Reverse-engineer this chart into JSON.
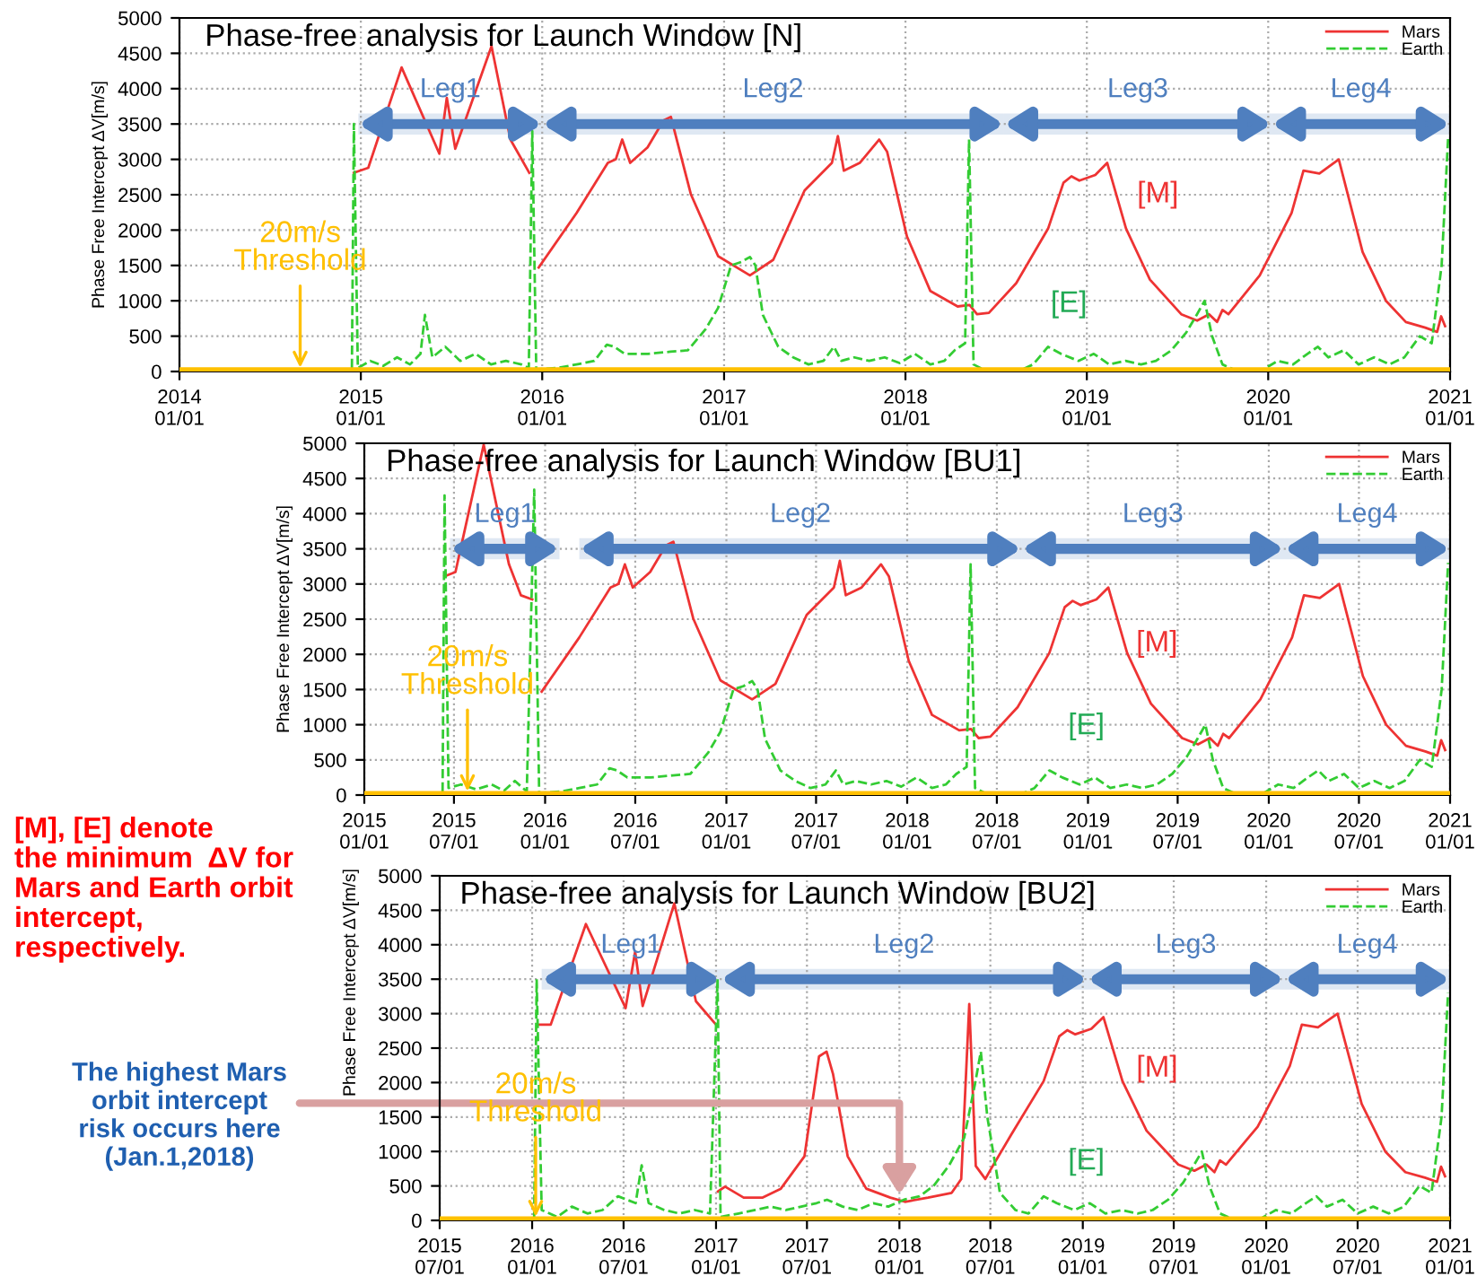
{
  "chart_data": [
    {
      "type": "line",
      "title": "Phase-free analysis for Launch Window [N]",
      "ylabel": "Phase Free Intercept ΔV[m/s]",
      "xlim": [
        "2014-01-01",
        "2021-01-01"
      ],
      "xticks": [
        {
          "value": "2014-01-01",
          "label": "2014\n01/01"
        },
        {
          "value": "2015-01-01",
          "label": "2015\n01/01"
        },
        {
          "value": "2016-01-01",
          "label": "2016\n01/01"
        },
        {
          "value": "2017-01-01",
          "label": "2017\n01/01"
        },
        {
          "value": "2018-01-01",
          "label": "2018\n01/01"
        },
        {
          "value": "2019-01-01",
          "label": "2019\n01/01"
        },
        {
          "value": "2020-01-01",
          "label": "2020\n01/01"
        },
        {
          "value": "2021-01-01",
          "label": "2021\n01/01"
        }
      ],
      "ylim": [
        0,
        5000
      ],
      "yticks": [
        0,
        500,
        1000,
        1500,
        2000,
        2500,
        3000,
        3500,
        4000,
        4500,
        5000
      ],
      "grid": true,
      "legend": "top right",
      "series": [
        {
          "name": "Mars",
          "color": "#ee3333",
          "line_style": "solid",
          "x": [
            "2014-12-18",
            "2015-01-16",
            "2015-03-24",
            "2015-06-08",
            "2015-06-23",
            "2015-07-10",
            "2015-09-21",
            "2015-10-29",
            "2015-12-06",
            "2015-12-15",
            "2015-12-25",
            "2016-03-10",
            "2016-05-12",
            "2016-05-28",
            "2016-06-10",
            "2016-06-26",
            "2016-07-31",
            "2016-09-01",
            "2016-09-16",
            "2016-10-26",
            "2016-12-20",
            "2017-02-22",
            "2017-04-10",
            "2017-06-12",
            "2017-08-06",
            "2017-08-18",
            "2017-08-30",
            "2017-10-01",
            "2017-11-09",
            "2017-11-25",
            "2018-01-04",
            "2018-02-20",
            "2018-04-16",
            "2018-05-10",
            "2018-05-25",
            "2018-06-18",
            "2018-08-12",
            "2018-10-15",
            "2018-11-15",
            "2018-12-01",
            "2018-12-17",
            "2019-01-18",
            "2019-02-11",
            "2019-03-21",
            "2019-05-08",
            "2019-07-10",
            "2019-08-11",
            "2019-09-04",
            "2019-09-20",
            "2019-10-01",
            "2019-10-13",
            "2019-12-15",
            "2020-02-17",
            "2020-03-12",
            "2020-04-13",
            "2020-05-22",
            "2020-07-09",
            "2020-08-25",
            "2020-10-04",
            "2020-11-12",
            "2020-12-06",
            "2020-12-14",
            "2020-12-22"
          ],
          "values": [
            2810,
            2880,
            4300,
            3080,
            3870,
            3150,
            4600,
            3280,
            2810,
            null,
            1470,
            2240,
            2950,
            3000,
            3280,
            2950,
            3170,
            3550,
            3600,
            2510,
            1630,
            1360,
            1580,
            2560,
            2950,
            3330,
            2840,
            2950,
            3280,
            3110,
            1910,
            1140,
            920,
            940,
            810,
            830,
            1250,
            2020,
            2670,
            2760,
            2700,
            2780,
            2950,
            2020,
            1300,
            810,
            720,
            810,
            700,
            870,
            810,
            1360,
            2240,
            2840,
            2800,
            3000,
            1690,
            1000,
            700,
            620,
            560,
            780,
            640
          ]
        },
        {
          "name": "Earth",
          "color": "#33cc33",
          "line_style": "dashed",
          "x": [
            "2014-12-14",
            "2014-12-18",
            "2014-12-26",
            "2015-01-20",
            "2015-02-15",
            "2015-03-15",
            "2015-04-10",
            "2015-05-01",
            "2015-05-10",
            "2015-05-25",
            "2015-06-20",
            "2015-07-20",
            "2015-08-20",
            "2015-09-20",
            "2015-10-20",
            "2015-11-20",
            "2015-12-05",
            "2015-12-12",
            "2015-12-20",
            "2016-02-01",
            "2016-03-10",
            "2016-04-15",
            "2016-05-10",
            "2016-05-25",
            "2016-06-15",
            "2016-08-01",
            "2016-09-15",
            "2016-10-20",
            "2016-11-25",
            "2016-12-20",
            "2017-01-15",
            "2017-02-05",
            "2017-02-22",
            "2017-03-05",
            "2017-03-20",
            "2017-04-20",
            "2017-05-20",
            "2017-06-20",
            "2017-07-20",
            "2017-08-10",
            "2017-08-25",
            "2017-09-20",
            "2017-10-20",
            "2017-11-20",
            "2017-12-20",
            "2018-01-20",
            "2018-02-20",
            "2018-03-20",
            "2018-04-10",
            "2018-05-01",
            "2018-05-09",
            "2018-05-18",
            "2018-06-15",
            "2018-08-15",
            "2018-09-15",
            "2018-10-15",
            "2018-11-10",
            "2018-12-15",
            "2019-01-15",
            "2019-02-15",
            "2019-03-20",
            "2019-04-20",
            "2019-05-20",
            "2019-06-20",
            "2019-07-20",
            "2019-08-10",
            "2019-08-26",
            "2019-09-10",
            "2019-10-01",
            "2019-11-01",
            "2019-12-15",
            "2020-01-20",
            "2020-02-20",
            "2020-03-20",
            "2020-04-10",
            "2020-05-01",
            "2020-06-01",
            "2020-07-01",
            "2020-08-01",
            "2020-09-01",
            "2020-10-01",
            "2020-11-01",
            "2020-11-25",
            "2020-12-15",
            "2020-12-28"
          ],
          "values": [
            50,
            3500,
            50,
            150,
            80,
            200,
            100,
            250,
            800,
            200,
            350,
            150,
            250,
            100,
            150,
            100,
            50,
            3400,
            30,
            50,
            100,
            150,
            380,
            350,
            250,
            250,
            280,
            300,
            600,
            900,
            1500,
            1550,
            1620,
            1500,
            800,
            350,
            200,
            100,
            150,
            350,
            150,
            200,
            150,
            200,
            120,
            250,
            100,
            150,
            300,
            400,
            3280,
            100,
            0,
            0,
            100,
            350,
            250,
            150,
            250,
            100,
            150,
            100,
            150,
            300,
            550,
            800,
            1000,
            500,
            100,
            0,
            0,
            150,
            100,
            250,
            350,
            200,
            300,
            100,
            200,
            100,
            200,
            500,
            400,
            1500,
            3300
          ]
        }
      ],
      "ref_lines": [
        {
          "axis": "y",
          "value": 20,
          "label": "20m/s\nThreshold",
          "color": "#ffc000"
        }
      ],
      "bands": [
        {
          "axis": "x",
          "from": "2014-12-27",
          "to": "2016-01-01",
          "label": "Leg1",
          "color": "#4f7fbf"
        },
        {
          "axis": "x",
          "from": "2016-01-01",
          "to": "2018-07-18",
          "label": "Leg2",
          "color": "#4f7fbf"
        },
        {
          "axis": "x",
          "from": "2018-07-18",
          "to": "2020-01-08",
          "label": "Leg3",
          "color": "#4f7fbf"
        },
        {
          "axis": "x",
          "from": "2020-01-08",
          "to": "2021-01-01",
          "label": "Leg4",
          "color": "#4f7fbf"
        }
      ],
      "annotations": [
        "[M]",
        "[E]"
      ]
    },
    {
      "type": "line",
      "title": "Phase-free analysis for Launch Window [BU1]",
      "ylabel": "Phase Free Intercept ΔV[m/s]",
      "xlim": [
        "2015-01-01",
        "2021-01-01"
      ],
      "xticks": [
        {
          "value": "2015-01-01",
          "label": "2015\n01/01"
        },
        {
          "value": "2015-07-01",
          "label": "2015\n07/01"
        },
        {
          "value": "2016-01-01",
          "label": "2016\n01/01"
        },
        {
          "value": "2016-07-01",
          "label": "2016\n07/01"
        },
        {
          "value": "2017-01-01",
          "label": "2017\n01/01"
        },
        {
          "value": "2017-07-01",
          "label": "2017\n07/01"
        },
        {
          "value": "2018-01-01",
          "label": "2018\n01/01"
        },
        {
          "value": "2018-07-01",
          "label": "2018\n07/01"
        },
        {
          "value": "2019-01-01",
          "label": "2019\n01/01"
        },
        {
          "value": "2019-07-01",
          "label": "2019\n07/01"
        },
        {
          "value": "2020-01-01",
          "label": "2020\n01/01"
        },
        {
          "value": "2020-07-01",
          "label": "2020\n07/01"
        },
        {
          "value": "2021-01-01",
          "label": "2021\n01/01"
        }
      ],
      "ylim": [
        0,
        5000
      ],
      "yticks": [
        0,
        500,
        1000,
        1500,
        2000,
        2500,
        3000,
        3500,
        4000,
        4500,
        5000
      ],
      "grid": true,
      "legend": "top right",
      "series": [
        {
          "name": "Mars",
          "color": "#ee3333",
          "line_style": "solid",
          "x": [
            "2015-06-12",
            "2015-07-04",
            "2015-08-30",
            "2015-10-20",
            "2015-11-13",
            "2015-12-06",
            "2015-12-15",
            "2015-12-25",
            "2016-03-10",
            "2016-05-12",
            "2016-05-28",
            "2016-06-10",
            "2016-06-26",
            "2016-07-31",
            "2016-09-01",
            "2016-09-16",
            "2016-10-26",
            "2016-12-20",
            "2017-02-22",
            "2017-04-10",
            "2017-06-12",
            "2017-08-06",
            "2017-08-18",
            "2017-08-30",
            "2017-10-01",
            "2017-11-09",
            "2017-11-25",
            "2018-01-04",
            "2018-02-20",
            "2018-04-16",
            "2018-05-10",
            "2018-05-25",
            "2018-06-18",
            "2018-08-12",
            "2018-10-15",
            "2018-11-15",
            "2018-12-01",
            "2018-12-17",
            "2019-01-18",
            "2019-02-11",
            "2019-03-21",
            "2019-05-08",
            "2019-07-10",
            "2019-08-11",
            "2019-09-04",
            "2019-09-20",
            "2019-10-01",
            "2019-10-13",
            "2019-12-15",
            "2020-02-17",
            "2020-03-12",
            "2020-04-13",
            "2020-05-22",
            "2020-07-09",
            "2020-08-25",
            "2020-10-04",
            "2020-11-12",
            "2020-12-06",
            "2020-12-14",
            "2020-12-22"
          ],
          "values": [
            3110,
            3170,
            4980,
            3280,
            2840,
            2780,
            null,
            1470,
            2240,
            2950,
            3000,
            3280,
            2950,
            3170,
            3550,
            3600,
            2510,
            1630,
            1360,
            1580,
            2560,
            2950,
            3330,
            2840,
            2950,
            3280,
            3110,
            1910,
            1140,
            920,
            940,
            810,
            830,
            1250,
            2020,
            2670,
            2760,
            2700,
            2780,
            2950,
            2020,
            1300,
            810,
            720,
            810,
            700,
            870,
            810,
            1360,
            2240,
            2840,
            2800,
            3000,
            1690,
            1000,
            700,
            620,
            560,
            780,
            640
          ]
        },
        {
          "name": "Earth",
          "color": "#33cc33",
          "line_style": "dashed",
          "x": [
            "2015-06-08",
            "2015-06-12",
            "2015-06-20",
            "2015-07-15",
            "2015-08-15",
            "2015-09-15",
            "2015-10-10",
            "2015-11-01",
            "2015-11-25",
            "2015-12-10",
            "2015-12-20",
            "2016-02-01",
            "2016-03-10",
            "2016-04-15",
            "2016-05-10",
            "2016-05-25",
            "2016-06-15",
            "2016-08-01",
            "2016-09-15",
            "2016-10-20",
            "2016-11-25",
            "2016-12-20",
            "2017-01-15",
            "2017-02-05",
            "2017-02-22",
            "2017-03-05",
            "2017-03-20",
            "2017-04-20",
            "2017-05-20",
            "2017-06-20",
            "2017-07-20",
            "2017-08-10",
            "2017-08-25",
            "2017-09-20",
            "2017-10-20",
            "2017-11-20",
            "2017-12-20",
            "2018-01-20",
            "2018-02-20",
            "2018-03-20",
            "2018-04-10",
            "2018-05-01",
            "2018-05-09",
            "2018-05-18",
            "2018-06-15",
            "2018-08-15",
            "2018-09-15",
            "2018-10-15",
            "2018-11-10",
            "2018-12-15",
            "2019-01-15",
            "2019-02-15",
            "2019-03-20",
            "2019-04-20",
            "2019-05-20",
            "2019-06-20",
            "2019-07-20",
            "2019-08-10",
            "2019-08-26",
            "2019-09-10",
            "2019-10-01",
            "2019-11-01",
            "2019-12-15",
            "2020-01-20",
            "2020-02-20",
            "2020-03-20",
            "2020-04-10",
            "2020-05-01",
            "2020-06-01",
            "2020-07-01",
            "2020-08-01",
            "2020-09-01",
            "2020-10-01",
            "2020-11-01",
            "2020-11-25",
            "2020-12-15",
            "2020-12-28"
          ],
          "values": [
            50,
            4260,
            100,
            150,
            80,
            150,
            60,
            200,
            50,
            4340,
            30,
            50,
            100,
            150,
            380,
            350,
            250,
            250,
            280,
            300,
            600,
            900,
            1500,
            1550,
            1620,
            1500,
            800,
            350,
            200,
            100,
            150,
            350,
            150,
            200,
            150,
            200,
            120,
            250,
            100,
            150,
            300,
            400,
            3280,
            100,
            0,
            0,
            100,
            350,
            250,
            150,
            250,
            100,
            150,
            100,
            150,
            300,
            550,
            800,
            1000,
            500,
            100,
            0,
            0,
            150,
            100,
            250,
            350,
            200,
            300,
            100,
            200,
            100,
            200,
            500,
            400,
            1500,
            3300
          ]
        }
      ],
      "ref_lines": [
        {
          "axis": "y",
          "value": 20,
          "label": "20m/s\nThreshold",
          "color": "#ffc000"
        }
      ],
      "bands": [
        {
          "axis": "x",
          "from": "2015-06-23",
          "to": "2016-01-30",
          "label": "Leg1",
          "color": "#4f7fbf"
        },
        {
          "axis": "x",
          "from": "2016-03-10",
          "to": "2018-08-20",
          "label": "Leg2",
          "color": "#4f7fbf"
        },
        {
          "axis": "x",
          "from": "2018-08-20",
          "to": "2020-02-01",
          "label": "Leg3",
          "color": "#4f7fbf"
        },
        {
          "axis": "x",
          "from": "2020-02-01",
          "to": "2021-01-01",
          "label": "Leg4",
          "color": "#4f7fbf"
        }
      ],
      "annotations": [
        "[M]",
        "[E]"
      ]
    },
    {
      "type": "line",
      "title": "Phase-free analysis for Launch Window [BU2]",
      "ylabel": "Phase Free Intercept ΔV[m/s]",
      "xlim": [
        "2015-07-01",
        "2021-01-01"
      ],
      "xticks": [
        {
          "value": "2015-07-01",
          "label": "2015\n07/01"
        },
        {
          "value": "2016-01-01",
          "label": "2016\n01/01"
        },
        {
          "value": "2016-07-01",
          "label": "2016\n07/01"
        },
        {
          "value": "2017-01-01",
          "label": "2017\n01/01"
        },
        {
          "value": "2017-07-01",
          "label": "2017\n07/01"
        },
        {
          "value": "2018-01-01",
          "label": "2018\n01/01"
        },
        {
          "value": "2018-07-01",
          "label": "2018\n07/01"
        },
        {
          "value": "2019-01-01",
          "label": "2019\n01/01"
        },
        {
          "value": "2019-07-01",
          "label": "2019\n07/01"
        },
        {
          "value": "2020-01-01",
          "label": "2020\n01/01"
        },
        {
          "value": "2020-07-01",
          "label": "2020\n07/01"
        },
        {
          "value": "2021-01-01",
          "label": "2021\n01/01"
        }
      ],
      "ylim": [
        0,
        5000
      ],
      "yticks": [
        0,
        500,
        1000,
        1500,
        2000,
        2500,
        3000,
        3500,
        4000,
        4500,
        5000
      ],
      "grid": true,
      "legend": "top right",
      "series": [
        {
          "name": "Mars",
          "color": "#ee3333",
          "line_style": "solid",
          "x": [
            "2016-01-14",
            "2016-02-07",
            "2016-04-17",
            "2016-07-05",
            "2016-07-24",
            "2016-08-08",
            "2016-10-10",
            "2016-11-22",
            "2017-01-01",
            "2017-01-03",
            "2017-01-05",
            "2017-01-19",
            "2017-02-25",
            "2017-04-03",
            "2017-05-10",
            "2017-06-26",
            "2017-07-25",
            "2017-08-09",
            "2017-08-22",
            "2017-09-20",
            "2017-10-27",
            "2017-12-14",
            "2018-01-12",
            "2018-02-27",
            "2018-04-15",
            "2018-05-04",
            "2018-05-20",
            "2018-06-02",
            "2018-06-21",
            "2018-07-01",
            "2018-08-12",
            "2018-10-15",
            "2018-11-15",
            "2018-12-01",
            "2018-12-17",
            "2019-01-18",
            "2019-02-11",
            "2019-03-21",
            "2019-05-08",
            "2019-07-10",
            "2019-08-11",
            "2019-09-04",
            "2019-09-20",
            "2019-10-01",
            "2019-10-13",
            "2019-12-15",
            "2020-02-17",
            "2020-03-12",
            "2020-04-13",
            "2020-05-22",
            "2020-07-09",
            "2020-08-25",
            "2020-10-04",
            "2020-11-12",
            "2020-12-06",
            "2020-12-14",
            "2020-12-22"
          ],
          "values": [
            2840,
            2840,
            4300,
            3080,
            3900,
            3110,
            4600,
            3180,
            2840,
            null,
            420,
            490,
            330,
            330,
            460,
            930,
            2380,
            2450,
            2120,
            930,
            460,
            330,
            270,
            330,
            400,
            600,
            3140,
            790,
            600,
            730,
            1250,
            2020,
            2670,
            2760,
            2700,
            2780,
            2950,
            2020,
            1300,
            810,
            720,
            810,
            700,
            870,
            810,
            1360,
            2240,
            2840,
            2800,
            3000,
            1690,
            1000,
            700,
            620,
            560,
            780,
            640
          ]
        },
        {
          "name": "Earth",
          "color": "#33cc33",
          "line_style": "dashed",
          "x": [
            "2016-01-05",
            "2016-01-10",
            "2016-01-20",
            "2016-02-20",
            "2016-03-20",
            "2016-04-20",
            "2016-05-20",
            "2016-06-20",
            "2016-07-25",
            "2016-08-06",
            "2016-08-20",
            "2016-09-20",
            "2016-10-20",
            "2016-11-20",
            "2016-12-20",
            "2017-01-04",
            "2017-01-10",
            "2017-02-15",
            "2017-03-20",
            "2017-04-20",
            "2017-05-20",
            "2017-06-20",
            "2017-07-20",
            "2017-08-10",
            "2017-09-10",
            "2017-10-10",
            "2017-11-10",
            "2017-12-10",
            "2018-01-10",
            "2018-02-10",
            "2018-03-10",
            "2018-04-10",
            "2018-05-10",
            "2018-06-01",
            "2018-06-12",
            "2018-06-25",
            "2018-07-20",
            "2018-08-20",
            "2018-09-15",
            "2018-10-15",
            "2018-11-10",
            "2018-12-15",
            "2019-01-15",
            "2019-02-15",
            "2019-03-20",
            "2019-04-20",
            "2019-05-20",
            "2019-06-20",
            "2019-07-20",
            "2019-08-10",
            "2019-08-26",
            "2019-09-10",
            "2019-10-01",
            "2019-11-01",
            "2019-12-15",
            "2020-01-20",
            "2020-02-20",
            "2020-03-20",
            "2020-04-10",
            "2020-05-01",
            "2020-06-01",
            "2020-07-01",
            "2020-08-01",
            "2020-09-01",
            "2020-10-01",
            "2020-11-01",
            "2020-11-25",
            "2020-12-15",
            "2020-12-28"
          ],
          "values": [
            50,
            3500,
            150,
            50,
            200,
            100,
            150,
            350,
            250,
            800,
            250,
            150,
            100,
            150,
            100,
            3500,
            50,
            100,
            150,
            200,
            150,
            200,
            250,
            300,
            200,
            150,
            250,
            200,
            300,
            350,
            500,
            800,
            1200,
            2000,
            2450,
            1500,
            400,
            150,
            100,
            350,
            250,
            150,
            250,
            100,
            150,
            100,
            150,
            300,
            550,
            800,
            1000,
            500,
            100,
            0,
            0,
            150,
            100,
            250,
            350,
            200,
            300,
            100,
            200,
            100,
            200,
            500,
            400,
            1500,
            3300
          ]
        }
      ],
      "ref_lines": [
        {
          "axis": "y",
          "value": 20,
          "label": "20m/s\nThreshold",
          "color": "#ffc000"
        }
      ],
      "bands": [
        {
          "axis": "x",
          "from": "2016-01-20",
          "to": "2017-01-10",
          "label": "Leg1",
          "color": "#4f7fbf"
        },
        {
          "axis": "x",
          "from": "2017-01-10",
          "to": "2019-01-10",
          "label": "Leg2",
          "color": "#4f7fbf"
        },
        {
          "axis": "x",
          "from": "2019-01-10",
          "to": "2020-02-06",
          "label": "Leg3",
          "color": "#4f7fbf"
        },
        {
          "axis": "x",
          "from": "2020-02-06",
          "to": "2021-01-01",
          "label": "Leg4",
          "color": "#4f7fbf"
        }
      ],
      "annotations": [
        "[M]",
        "[E]",
        "[M], [E] denote\nthe minimum  ΔV for\nMars and Earth orbit\nintercept,\nrespectively.",
        {
          "text": "The highest Mars\norbit intercept\nrisk occurs here\n(Jan.1,2018)",
          "x": "2018-01-01",
          "y": 300
        }
      ]
    }
  ]
}
